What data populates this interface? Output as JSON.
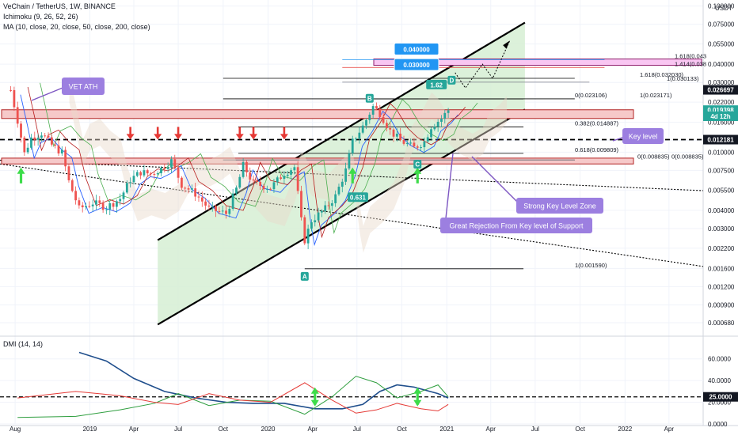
{
  "header": {
    "symbol": "VeChain / TetherUS, 1W, BINANCE",
    "ichimoku": "Ichimoku (9, 26, 52, 26)",
    "ma": "MA (10, close, 20, close, 50, close, 200, close)",
    "dmi": "DMI (14, 14)"
  },
  "colors": {
    "bull": "#26a69a",
    "bear": "#ef5350",
    "trend": "#000000",
    "channel_fill": "#d6efd3",
    "zone_fill": "#f6c9c9",
    "zone_border": "#b22222",
    "note_purple": "#9c7fe0",
    "tag_blue": "#2196f3",
    "pink_zone": "#f9c6f2",
    "dmi_plus": "#2e9e3e",
    "dmi_minus": "#e53935",
    "adx": "#1f4e8c"
  },
  "chart_data": [
    {
      "type": "candlestick",
      "title": "VeChain / TetherUS, 1W, BINANCE",
      "y_scale": "log",
      "y_unit": "USDT",
      "ylim": [
        0.0006,
        0.11
      ],
      "y_ticks": [
        "0.100000",
        "0.075000",
        "0.055000",
        "0.040000",
        "0.030000",
        "0.022000",
        "0.016000",
        "0.012000",
        "0.010000",
        "0.007500",
        "0.005500",
        "0.004000",
        "0.003000",
        "0.002200",
        "0.001600",
        "0.001200",
        "0.000900",
        "0.000680"
      ],
      "y_ticks_value": [
        0.1,
        0.075,
        0.055,
        0.04,
        0.03,
        0.022,
        0.016,
        0.012,
        0.01,
        0.0075,
        0.0055,
        0.004,
        0.003,
        0.0022,
        0.0016,
        0.0012,
        0.0009,
        0.00068
      ],
      "x_ticks": [
        "Aug",
        "2019",
        "Apr",
        "Jul",
        "Oct",
        "2020",
        "Apr",
        "Jul",
        "Oct",
        "2021",
        "Apr",
        "Jul",
        "Oct",
        "2022",
        "Apr"
      ],
      "x_ticks_date": [
        "2018-08-01",
        "2019-01-01",
        "2019-04-01",
        "2019-07-01",
        "2019-10-01",
        "2020-01-01",
        "2020-04-01",
        "2020-07-01",
        "2020-10-01",
        "2021-01-01",
        "2021-04-01",
        "2021-07-01",
        "2021-10-01",
        "2022-01-01",
        "2022-04-01"
      ],
      "xlim": [
        "2018-07-01",
        "2022-06-10"
      ],
      "price_path": [
        [
          "2018-07-23",
          0.0266
        ],
        [
          "2018-08-06",
          0.0165
        ],
        [
          "2018-08-20",
          0.0098
        ],
        [
          "2018-09-03",
          0.0125
        ],
        [
          "2018-09-24",
          0.0135
        ],
        [
          "2018-10-15",
          0.0112
        ],
        [
          "2018-11-05",
          0.0099
        ],
        [
          "2018-11-19",
          0.0063
        ],
        [
          "2018-12-10",
          0.0041
        ],
        [
          "2019-01-07",
          0.0045
        ],
        [
          "2019-02-04",
          0.0042
        ],
        [
          "2019-03-04",
          0.0048
        ],
        [
          "2019-03-25",
          0.0065
        ],
        [
          "2019-04-15",
          0.0073
        ],
        [
          "2019-05-06",
          0.0071
        ],
        [
          "2019-05-27",
          0.0077
        ],
        [
          "2019-06-17",
          0.0087
        ],
        [
          "2019-07-08",
          0.006
        ],
        [
          "2019-08-05",
          0.0052
        ],
        [
          "2019-09-02",
          0.0041
        ],
        [
          "2019-10-07",
          0.0038
        ],
        [
          "2019-10-28",
          0.0056
        ],
        [
          "2019-11-11",
          0.0081
        ],
        [
          "2019-12-02",
          0.0061
        ],
        [
          "2020-01-06",
          0.0057
        ],
        [
          "2020-02-03",
          0.0072
        ],
        [
          "2020-02-24",
          0.0079
        ],
        [
          "2020-03-09",
          0.0034
        ],
        [
          "2020-03-16",
          0.0025
        ],
        [
          "2020-03-30",
          0.0034
        ],
        [
          "2020-04-27",
          0.0041
        ],
        [
          "2020-05-18",
          0.005
        ],
        [
          "2020-06-08",
          0.0075
        ],
        [
          "2020-06-22",
          0.0118
        ],
        [
          "2020-07-13",
          0.015
        ],
        [
          "2020-08-03",
          0.0205
        ],
        [
          "2020-08-17",
          0.0185
        ],
        [
          "2020-09-07",
          0.014
        ],
        [
          "2020-09-28",
          0.012
        ],
        [
          "2020-10-26",
          0.0107
        ],
        [
          "2020-11-16",
          0.0118
        ],
        [
          "2020-11-30",
          0.015
        ],
        [
          "2020-12-21",
          0.017
        ],
        [
          "2021-01-04",
          0.0194
        ]
      ],
      "zones": [
        {
          "from": 0.017,
          "to": 0.0195
        },
        {
          "from": 0.0083,
          "to": 0.0091
        }
      ],
      "pink_zone": {
        "from": 0.0393,
        "to": 0.0434
      },
      "key_level": 0.012181,
      "channel": {
        "lower": [
          [
            "2019-05-20",
            0.00066
          ],
          [
            "2021-06-10",
            0.0196
          ]
        ],
        "upper": [
          [
            "2019-05-20",
            0.0025
          ],
          [
            "2021-06-10",
            0.077
          ]
        ]
      },
      "fib_levels": [
        {
          "label": "0(0.023106)",
          "value": 0.023106
        },
        {
          "label": "0.382(0.014887)",
          "value": 0.014887
        },
        {
          "label": "0.618(0.009809)",
          "value": 0.009809
        },
        {
          "label": "1(0.001590)",
          "value": 0.00159
        },
        {
          "label": "1(0.023171)",
          "value": 0.023171
        },
        {
          "label": "1.618(0.032030)",
          "value": 0.03203
        },
        {
          "label": "1(0.030133)",
          "value": 0.030133
        },
        {
          "label": "0(0.008835)",
          "value": 0.008835
        },
        {
          "label": "0(0.008835)",
          "value": 0.008835
        },
        {
          "label": "1.618(0.043",
          "value": 0.043
        },
        {
          "label": "1.414(0.038",
          "value": 0.038
        }
      ],
      "price_tags": [
        {
          "label": "0.026697",
          "value": 0.026697
        },
        {
          "label": "0.019398",
          "value": 0.019398
        },
        {
          "label": "4d 12h",
          "value": 0.0176
        },
        {
          "label": "0.012181",
          "value": 0.012181
        }
      ],
      "point_labels": [
        {
          "label": "A",
          "date": "2020-03-16",
          "value": 0.00159
        },
        {
          "label": "B",
          "date": "2020-07-27",
          "value": 0.0263
        },
        {
          "label": "C",
          "date": "2020-11-02",
          "value": 0.0093
        },
        {
          "label": "D",
          "date": "2021-01-11",
          "value": 0.035
        }
      ],
      "ratio_tags": [
        {
          "label": "0.631",
          "date": "2020-06-15",
          "value": 0.0048
        },
        {
          "label": "1.62",
          "date": "2020-11-23",
          "value": 0.0283
        }
      ],
      "target_tags": [
        {
          "label": "0.040000",
          "value": 0.0505
        },
        {
          "label": "0.030000",
          "value": 0.0395
        }
      ],
      "notes": [
        "VET ATH",
        "Key level",
        "Strong Key Level Zone",
        "Great Rejection From Key level of Support"
      ],
      "red_arrows": [
        "2019-03-25",
        "2019-05-20",
        "2019-07-01",
        "2019-11-04",
        "2019-12-02",
        "2020-02-03"
      ],
      "green_arrows_date": [
        "2018-08-13",
        "2020-06-22",
        "2020-11-02"
      ]
    },
    {
      "type": "line",
      "title": "DMI (14, 14)",
      "ylim": [
        0,
        70
      ],
      "y_ticks": [
        "60.0000",
        "40.0000",
        "20.0000",
        "0.0000"
      ],
      "y_ticks_value": [
        60,
        40,
        20,
        0
      ],
      "reference_label": "25.0000",
      "reference": 25,
      "series": [
        {
          "color": "#1f4e8c",
          "points": [
            [
              "2018-12-10",
              66
            ],
            [
              "2019-02-04",
              58
            ],
            [
              "2019-04-01",
              42
            ],
            [
              "2019-06-03",
              30
            ],
            [
              "2019-08-05",
              24
            ],
            [
              "2019-10-07",
              20
            ],
            [
              "2019-12-02",
              19
            ],
            [
              "2020-02-03",
              19
            ],
            [
              "2020-04-06",
              14
            ],
            [
              "2020-06-01",
              14
            ],
            [
              "2020-07-13",
              18
            ],
            [
              "2020-08-17",
              30
            ],
            [
              "2020-09-21",
              36
            ],
            [
              "2020-10-26",
              34
            ],
            [
              "2020-12-14",
              28
            ],
            [
              "2021-01-04",
              24
            ]
          ]
        },
        {
          "color": "#2e9e3e",
          "points": [
            [
              "2018-08-06",
              6
            ],
            [
              "2018-12-03",
              7
            ],
            [
              "2019-03-04",
              13
            ],
            [
              "2019-05-13",
              19
            ],
            [
              "2019-07-01",
              28
            ],
            [
              "2019-09-02",
              17
            ],
            [
              "2019-11-04",
              22
            ],
            [
              "2020-01-06",
              21
            ],
            [
              "2020-03-16",
              9
            ],
            [
              "2020-05-11",
              25
            ],
            [
              "2020-06-29",
              44
            ],
            [
              "2020-08-10",
              38
            ],
            [
              "2020-09-21",
              24
            ],
            [
              "2020-11-09",
              30
            ],
            [
              "2020-12-14",
              36
            ],
            [
              "2021-01-04",
              25
            ]
          ]
        },
        {
          "color": "#e53935",
          "points": [
            [
              "2018-08-06",
              24
            ],
            [
              "2018-12-03",
              30
            ],
            [
              "2019-03-04",
              26
            ],
            [
              "2019-05-13",
              20
            ],
            [
              "2019-07-01",
              18
            ],
            [
              "2019-09-02",
              28
            ],
            [
              "2019-11-04",
              22
            ],
            [
              "2020-01-06",
              20
            ],
            [
              "2020-03-16",
              38
            ],
            [
              "2020-05-11",
              22
            ],
            [
              "2020-06-29",
              10
            ],
            [
              "2020-08-10",
              13
            ],
            [
              "2020-09-21",
              19
            ],
            [
              "2020-11-09",
              14
            ],
            [
              "2020-12-14",
              12
            ],
            [
              "2021-01-04",
              18
            ]
          ]
        }
      ],
      "green_arrows_date": [
        "2020-04-06",
        "2020-11-02"
      ]
    }
  ]
}
